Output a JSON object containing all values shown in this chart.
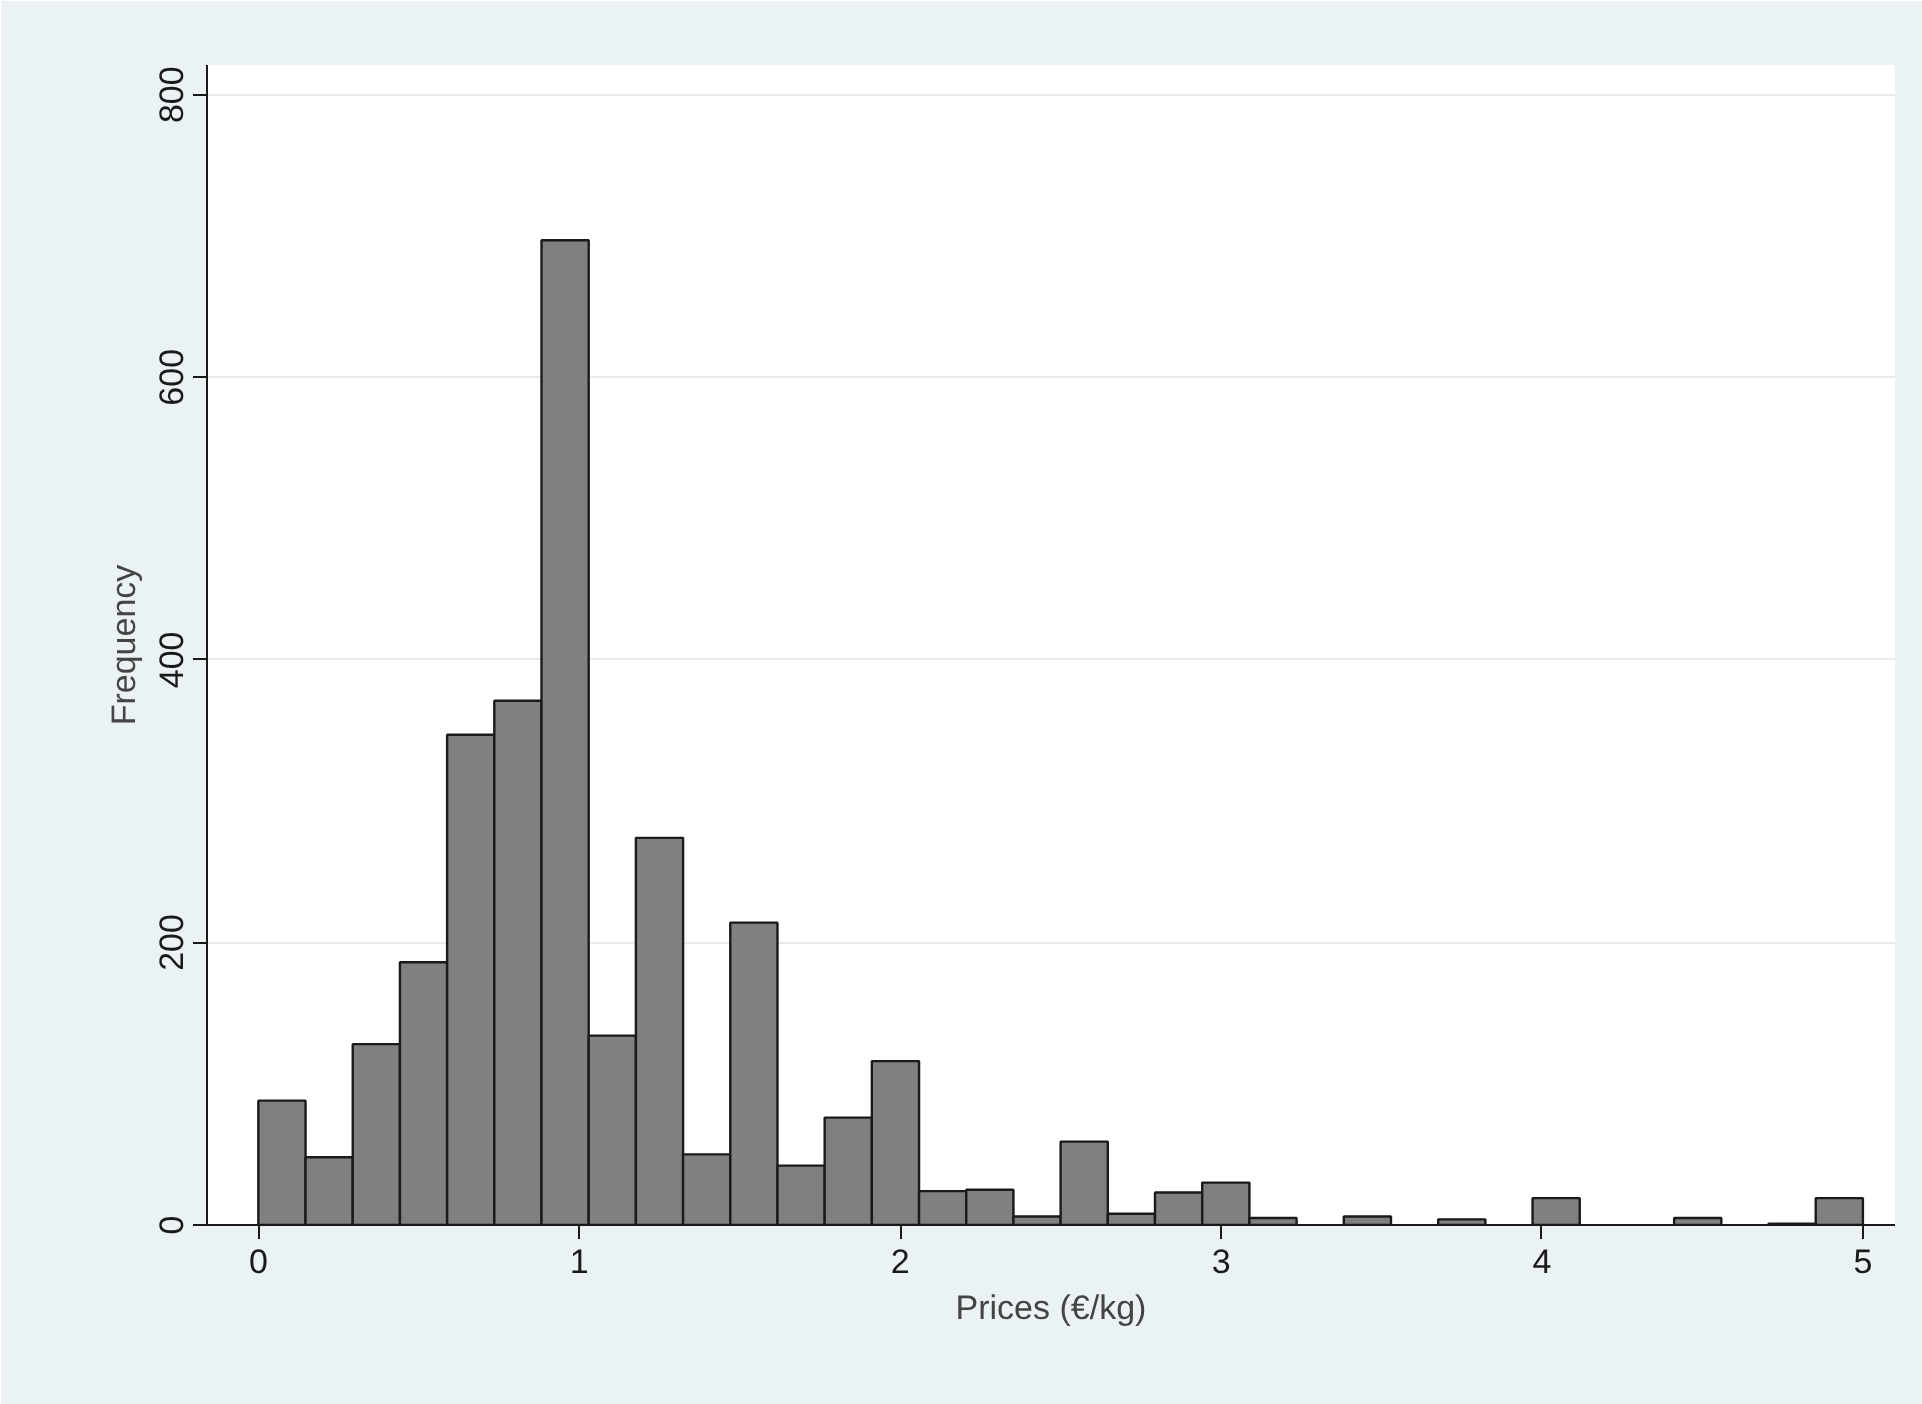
{
  "chart_data": {
    "type": "histogram",
    "xlabel": "Prices (€/kg)",
    "ylabel": "Frequency",
    "bins": [
      0,
      0.147059,
      0.294118,
      0.441176,
      0.588235,
      0.735294,
      0.882353,
      1.029412,
      1.176471,
      1.323529,
      1.470588,
      1.617647,
      1.764706,
      1.911765,
      2.058824,
      2.205882,
      2.352941,
      2.5,
      2.647059,
      2.794118,
      2.941176,
      3.088235,
      3.235294,
      3.382353,
      3.529412,
      3.676471,
      3.823529,
      3.970588,
      4.117647,
      4.264706,
      4.411765,
      4.558824,
      4.705882,
      4.852941,
      5
    ],
    "values": [
      88,
      48,
      128,
      186,
      347,
      371,
      697,
      134,
      274,
      50,
      214,
      42,
      76,
      116,
      24,
      25,
      6,
      59,
      8,
      23,
      30,
      5,
      0,
      6,
      0,
      4,
      0,
      19,
      0,
      0,
      5,
      0,
      1,
      19
    ],
    "color": "#808080",
    "xlim": [
      -0.16,
      5.1
    ],
    "ylim": [
      0,
      821
    ],
    "xticks": [
      0,
      1,
      2,
      3,
      4,
      5
    ],
    "yticks": [
      0,
      200,
      400,
      600,
      800
    ],
    "grid": "y"
  }
}
